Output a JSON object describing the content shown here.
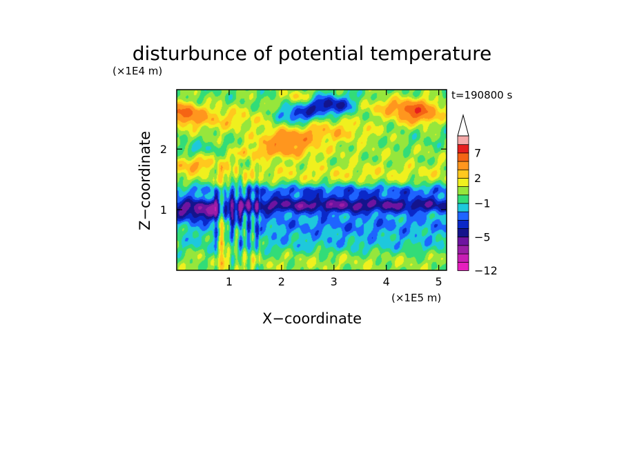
{
  "chart_data": {
    "type": "heatmap",
    "title": "disturbunce of potential temperature",
    "time_label": "t=190800 s",
    "xlabel": "X−coordinate",
    "ylabel": "Z−coordinate",
    "x_unit": "(×1E5 m)",
    "y_unit": "(×1E4 m)",
    "xlim": [
      0,
      5.15
    ],
    "ylim": [
      0,
      2.98
    ],
    "x_ticks": [
      1,
      2,
      3,
      4,
      5
    ],
    "x_tick_labels": [
      "1",
      "2",
      "3",
      "4",
      "5"
    ],
    "y_ticks": [
      1,
      2
    ],
    "y_tick_labels": [
      "1",
      "2"
    ],
    "colorbar": {
      "levels": [
        -12,
        -10,
        -8,
        -6,
        -5,
        -4,
        -3,
        -2,
        -1,
        0,
        1,
        2,
        3,
        5,
        7,
        9,
        11
      ],
      "colors": [
        "#e61ebe",
        "#c81eb4",
        "#9b1ea6",
        "#6e14a0",
        "#14148c",
        "#0a28c8",
        "#1e64ff",
        "#1ec8dc",
        "#32dc78",
        "#96e63c",
        "#f0f01e",
        "#ffc81e",
        "#ff961e",
        "#f56414",
        "#e61e1e",
        "#f5aaaa"
      ],
      "tick_labels": [
        {
          "value": -12,
          "label": "−12"
        },
        {
          "value": -5,
          "label": "−5"
        },
        {
          "value": -1,
          "label": "−1"
        },
        {
          "value": 2,
          "label": "2"
        },
        {
          "value": 7,
          "label": "7"
        }
      ],
      "extend": "max"
    },
    "features": [
      {
        "x": 3.0,
        "z": 0.18,
        "sx": 4.0,
        "sz": 0.22,
        "v": 0.8
      },
      {
        "x": 3.2,
        "z": 0.42,
        "sx": 4.0,
        "sz": 0.18,
        "v": -1.5
      },
      {
        "x": 3.2,
        "z": 0.75,
        "sx": 4.0,
        "sz": 0.2,
        "v": -2.3
      },
      {
        "x": 3.0,
        "z": 1.08,
        "sx": 4.5,
        "sz": 0.14,
        "v": -5.2
      },
      {
        "x": 0.5,
        "z": 0.94,
        "sx": 0.8,
        "sz": 0.14,
        "v": -3.5
      },
      {
        "x": 3.0,
        "z": 1.32,
        "sx": 4.5,
        "sz": 0.11,
        "v": -2.8
      },
      {
        "x": 3.0,
        "z": 1.6,
        "sx": 4.5,
        "sz": 0.2,
        "v": 1.4
      },
      {
        "x": 0.3,
        "z": 1.75,
        "sx": 0.5,
        "sz": 0.12,
        "v": 2.5
      },
      {
        "x": 1.8,
        "z": 1.95,
        "sx": 0.9,
        "sz": 0.12,
        "v": 2.8
      },
      {
        "x": 4.0,
        "z": 1.95,
        "sx": 1.5,
        "sz": 0.1,
        "v": 0.5
      },
      {
        "x": 0.5,
        "z": 2.0,
        "sx": 0.8,
        "sz": 0.1,
        "v": -1.2
      },
      {
        "x": 2.1,
        "z": 2.15,
        "sx": 0.55,
        "sz": 0.15,
        "v": 4.0
      },
      {
        "x": 3.0,
        "z": 2.3,
        "sx": 1.0,
        "sz": 0.2,
        "v": 2.6
      },
      {
        "x": 0.6,
        "z": 2.5,
        "sx": 0.9,
        "sz": 0.2,
        "v": 2.5
      },
      {
        "x": 0.15,
        "z": 2.6,
        "sx": 0.3,
        "sz": 0.15,
        "v": 4.5
      },
      {
        "x": 2.95,
        "z": 2.72,
        "sx": 0.55,
        "sz": 0.16,
        "v": -5.0
      },
      {
        "x": 2.3,
        "z": 2.55,
        "sx": 0.35,
        "sz": 0.15,
        "v": -3.5
      },
      {
        "x": 2.3,
        "z": 2.85,
        "sx": 0.3,
        "sz": 0.12,
        "v": 2.4
      },
      {
        "x": 4.6,
        "z": 2.6,
        "sx": 0.4,
        "sz": 0.18,
        "v": 5.5
      },
      {
        "x": 4.0,
        "z": 2.7,
        "sx": 0.8,
        "sz": 0.15,
        "v": 2.5
      },
      {
        "x": 3.8,
        "z": 2.3,
        "sx": 1.1,
        "sz": 0.18,
        "v": -0.4
      },
      {
        "x": 1.45,
        "z": 2.55,
        "sx": 0.35,
        "sz": 0.18,
        "v": 0.3
      },
      {
        "x": 0.88,
        "z": 0.75,
        "sx": 0.05,
        "sz": 0.7,
        "v": 5.0
      }
    ]
  }
}
